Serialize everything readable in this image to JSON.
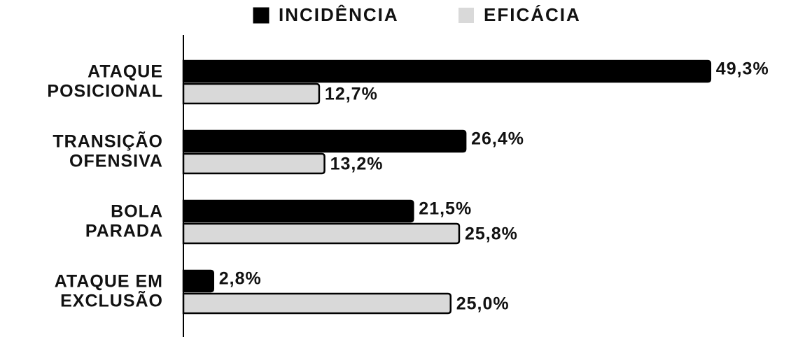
{
  "chart_data": {
    "type": "bar",
    "orientation": "horizontal",
    "categories": [
      [
        "ATAQUE",
        "POSICIONAL"
      ],
      [
        "TRANSIÇÃO",
        "OFENSIVA"
      ],
      [
        "BOLA",
        "PARADA"
      ],
      [
        "ATAQUE EM",
        "EXCLUSÃO"
      ]
    ],
    "series": [
      {
        "name": "INCIDÊNCIA",
        "color": "#000000",
        "values": [
          49.3,
          26.4,
          21.5,
          2.8
        ],
        "value_labels": [
          "49,3%",
          "26,4%",
          "21,5%",
          "2,8%"
        ]
      },
      {
        "name": "EFICÁCIA",
        "color": "#d9d9d9",
        "values": [
          12.7,
          13.2,
          25.8,
          25.0
        ],
        "value_labels": [
          "12,7%",
          "13,2%",
          "25,8%",
          "25,0%"
        ]
      }
    ],
    "legend": "top"
  }
}
